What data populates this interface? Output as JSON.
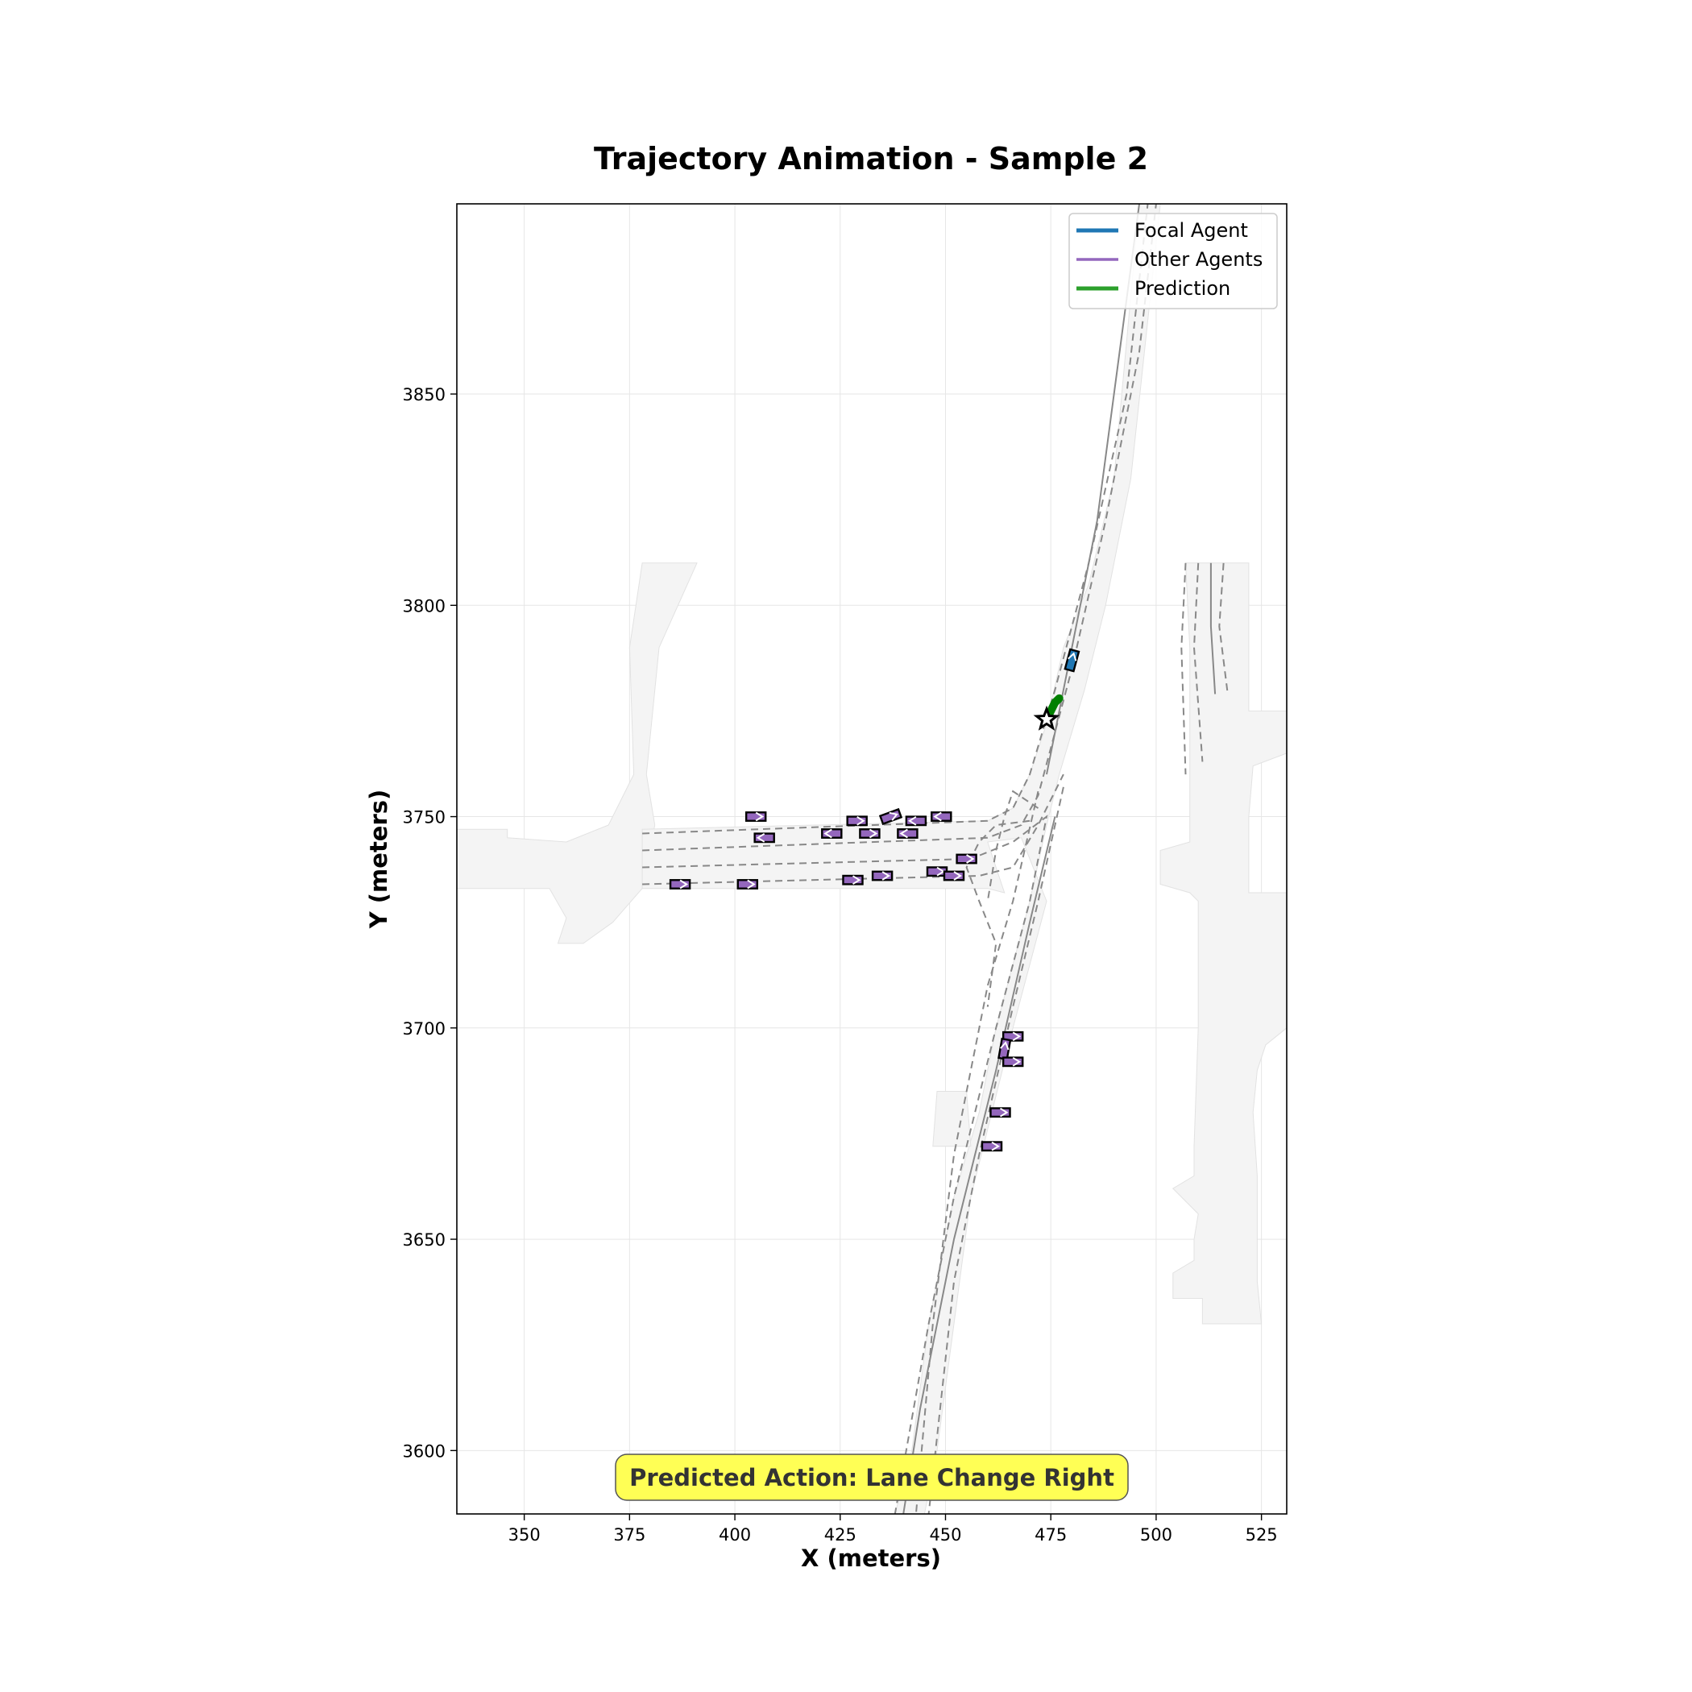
{
  "chart_data": {
    "type": "scatter",
    "title": "Trajectory Animation - Sample 2",
    "xlabel": "X (meters)",
    "ylabel": "Y (meters)",
    "xlim": [
      334,
      531
    ],
    "ylim": [
      3585,
      3895
    ],
    "xticks": [
      350,
      375,
      400,
      425,
      450,
      475,
      500,
      525
    ],
    "yticks": [
      3600,
      3650,
      3700,
      3750,
      3800,
      3850
    ],
    "grid": true,
    "legend_placement": "top-right",
    "legend": [
      {
        "label": "Focal Agent",
        "color": "#1f77b4"
      },
      {
        "label": "Other Agents",
        "color": "#9467bd"
      },
      {
        "label": "Prediction",
        "color": "#2ca02c"
      }
    ],
    "annotation": "Predicted Action: Lane Change Right",
    "focal_agent": {
      "x": 480,
      "y": 3787,
      "heading_deg": 75
    },
    "prediction": {
      "x": [
        474,
        475,
        476,
        477
      ],
      "y": [
        3773,
        3775,
        3777,
        3778
      ],
      "goal": {
        "x": 474,
        "y": 3773
      }
    },
    "other_agents": [
      {
        "x": 405,
        "y": 3750,
        "heading_deg": 0
      },
      {
        "x": 407,
        "y": 3745,
        "heading_deg": 180
      },
      {
        "x": 429,
        "y": 3749,
        "heading_deg": 0
      },
      {
        "x": 437,
        "y": 3750,
        "heading_deg": 20
      },
      {
        "x": 443,
        "y": 3749,
        "heading_deg": 180
      },
      {
        "x": 449,
        "y": 3750,
        "heading_deg": 180
      },
      {
        "x": 423,
        "y": 3746,
        "heading_deg": 180
      },
      {
        "x": 432,
        "y": 3746,
        "heading_deg": 0
      },
      {
        "x": 441,
        "y": 3746,
        "heading_deg": 180
      },
      {
        "x": 455,
        "y": 3740,
        "heading_deg": 0
      },
      {
        "x": 387,
        "y": 3734,
        "heading_deg": 0
      },
      {
        "x": 403,
        "y": 3734,
        "heading_deg": 0
      },
      {
        "x": 428,
        "y": 3735,
        "heading_deg": 0
      },
      {
        "x": 435,
        "y": 3736,
        "heading_deg": 0
      },
      {
        "x": 448,
        "y": 3737,
        "heading_deg": 0
      },
      {
        "x": 452,
        "y": 3736,
        "heading_deg": 0
      },
      {
        "x": 466,
        "y": 3698,
        "heading_deg": 0
      },
      {
        "x": 464,
        "y": 3695,
        "heading_deg": 80
      },
      {
        "x": 466,
        "y": 3692,
        "heading_deg": 0
      },
      {
        "x": 463,
        "y": 3680,
        "heading_deg": 0
      },
      {
        "x": 461,
        "y": 3672,
        "heading_deg": 0
      }
    ]
  },
  "colors": {
    "focal": "#1f77b4",
    "other": "#9467bd",
    "prediction": "#2ca02c",
    "prediction_line": "#008000",
    "banner": "#ffff55",
    "road": "#f4f4f4",
    "lane": "#888888"
  }
}
